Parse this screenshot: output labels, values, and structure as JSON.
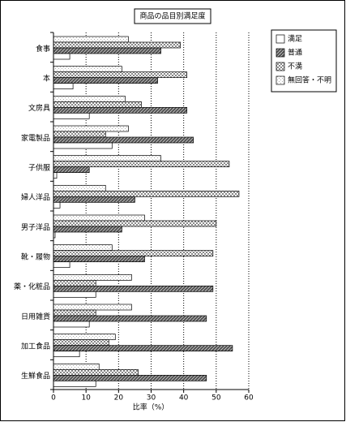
{
  "chart_data": {
    "type": "bar",
    "orientation": "horizontal",
    "title": "商品の品目別満足度",
    "xlabel": "比率（%）",
    "categories": [
      "食事",
      "本",
      "文房具",
      "家電製品",
      "子供服",
      "婦人洋品",
      "男子洋品",
      "靴・履物",
      "薬・化粧品",
      "日用雑貨",
      "加工食品",
      "生鮮食品"
    ],
    "series": [
      {
        "name": "満足",
        "color": "#ffffff",
        "pattern": "none",
        "values": [
          5,
          6,
          11,
          18,
          1,
          2,
          0.5,
          5,
          13,
          11,
          8,
          13
        ]
      },
      {
        "name": "普通",
        "color": "#555555",
        "pattern": "hatch",
        "values": [
          33,
          32,
          41,
          43,
          11,
          25,
          21,
          28,
          49,
          47,
          55,
          47
        ]
      },
      {
        "name": "不満",
        "color": "#888888",
        "pattern": "checker",
        "values": [
          39,
          41,
          27,
          16,
          54,
          57,
          50,
          49,
          13,
          13,
          17,
          26
        ]
      },
      {
        "name": "無回答・不明",
        "color": "#aaaaaa",
        "pattern": "dots",
        "values": [
          23,
          21,
          22,
          23,
          33,
          16,
          28,
          18,
          24,
          24,
          19,
          14
        ]
      }
    ],
    "xlim": [
      0,
      60
    ],
    "xticks": [
      0,
      10,
      20,
      30,
      40,
      50,
      60
    ],
    "grid": true,
    "legend": "upper right"
  }
}
